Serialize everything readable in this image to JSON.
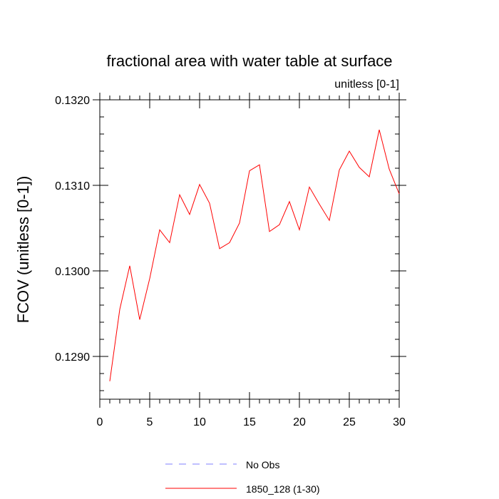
{
  "chart_data": {
    "type": "line",
    "title": "fractional area with water table at surface",
    "subtitle": "unitless [0-1]",
    "xlabel": "",
    "ylabel": "FCOV  (unitless [0-1])",
    "xlim": [
      0,
      30
    ],
    "ylim": [
      0.1285,
      0.132
    ],
    "xticks": [
      0,
      5,
      10,
      15,
      20,
      25,
      30
    ],
    "xtick_labels": [
      "0",
      "5",
      "10",
      "15",
      "20",
      "25",
      "30"
    ],
    "yticks": [
      0.129,
      0.13,
      0.131,
      0.132
    ],
    "ytick_labels": [
      "0.1290",
      "0.1300",
      "0.1310",
      "0.1320"
    ],
    "grid": false,
    "legend_placement": "bottom",
    "series": [
      {
        "name": "No Obs",
        "color": "#8080ff",
        "dash": "dashed",
        "x": [],
        "y": []
      },
      {
        "name": "1850_128 (1-30)",
        "color": "#ff0000",
        "dash": "solid",
        "x": [
          1,
          2,
          3,
          4,
          5,
          6,
          7,
          8,
          9,
          10,
          11,
          12,
          13,
          14,
          15,
          16,
          17,
          18,
          19,
          20,
          21,
          22,
          23,
          24,
          25,
          26,
          27,
          28,
          29,
          30
        ],
        "y": [
          0.12871,
          0.12955,
          0.13006,
          0.12943,
          0.12991,
          0.13048,
          0.13033,
          0.13089,
          0.13066,
          0.13101,
          0.13079,
          0.13026,
          0.13033,
          0.13056,
          0.13117,
          0.13124,
          0.13046,
          0.13054,
          0.13081,
          0.13048,
          0.13098,
          0.13078,
          0.13059,
          0.13118,
          0.1314,
          0.13121,
          0.1311,
          0.13165,
          0.13119,
          0.1309
        ]
      }
    ]
  }
}
